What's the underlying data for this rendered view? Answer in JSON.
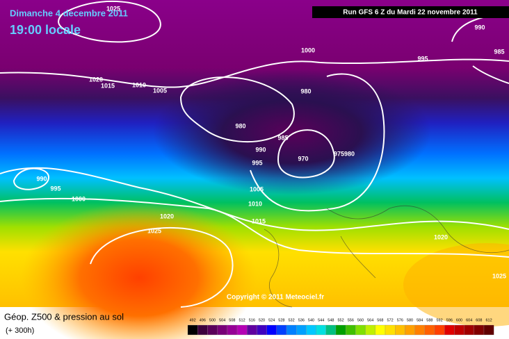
{
  "header": {
    "date": "Dimanche 4 decembre 2011",
    "time": "19:00 locale",
    "run": "Run GFS 6 Z du Mardi 22 novembre 2011"
  },
  "map": {
    "copyright": "Copyright © 2011 Meteociel.fr",
    "isobar_labels": [
      "1025",
      "990",
      "985",
      "1000",
      "995",
      "1020",
      "1015",
      "1010",
      "1005",
      "980",
      "980",
      "985",
      "990",
      "970",
      "975980",
      "995",
      "990",
      "995",
      "1000",
      "1005",
      "1010",
      "1020",
      "1015",
      "1025",
      "1020",
      "1025"
    ]
  },
  "legend": {
    "title": "Géop. Z500 & pression au sol",
    "subtitle": "(+ 300h)",
    "scale": {
      "values": [
        492,
        496,
        500,
        504,
        508,
        512,
        516,
        520,
        524,
        528,
        532,
        536,
        540,
        544,
        548,
        552,
        556,
        560,
        564,
        568,
        572,
        576,
        580,
        584,
        588,
        592,
        596,
        600,
        604,
        608,
        612
      ],
      "colors": [
        "#000000",
        "#3c003c",
        "#5a005a",
        "#780078",
        "#960096",
        "#b400b4",
        "#6000a0",
        "#4000c0",
        "#0000ff",
        "#0040ff",
        "#0080ff",
        "#00a0ff",
        "#00c8ff",
        "#00e0e0",
        "#00c080",
        "#00a000",
        "#40c000",
        "#80e000",
        "#c0f000",
        "#ffff00",
        "#ffe000",
        "#ffc000",
        "#ffa000",
        "#ff8000",
        "#ff6000",
        "#ff4000",
        "#e00000",
        "#c00000",
        "#a00000",
        "#800000",
        "#600000"
      ]
    }
  }
}
